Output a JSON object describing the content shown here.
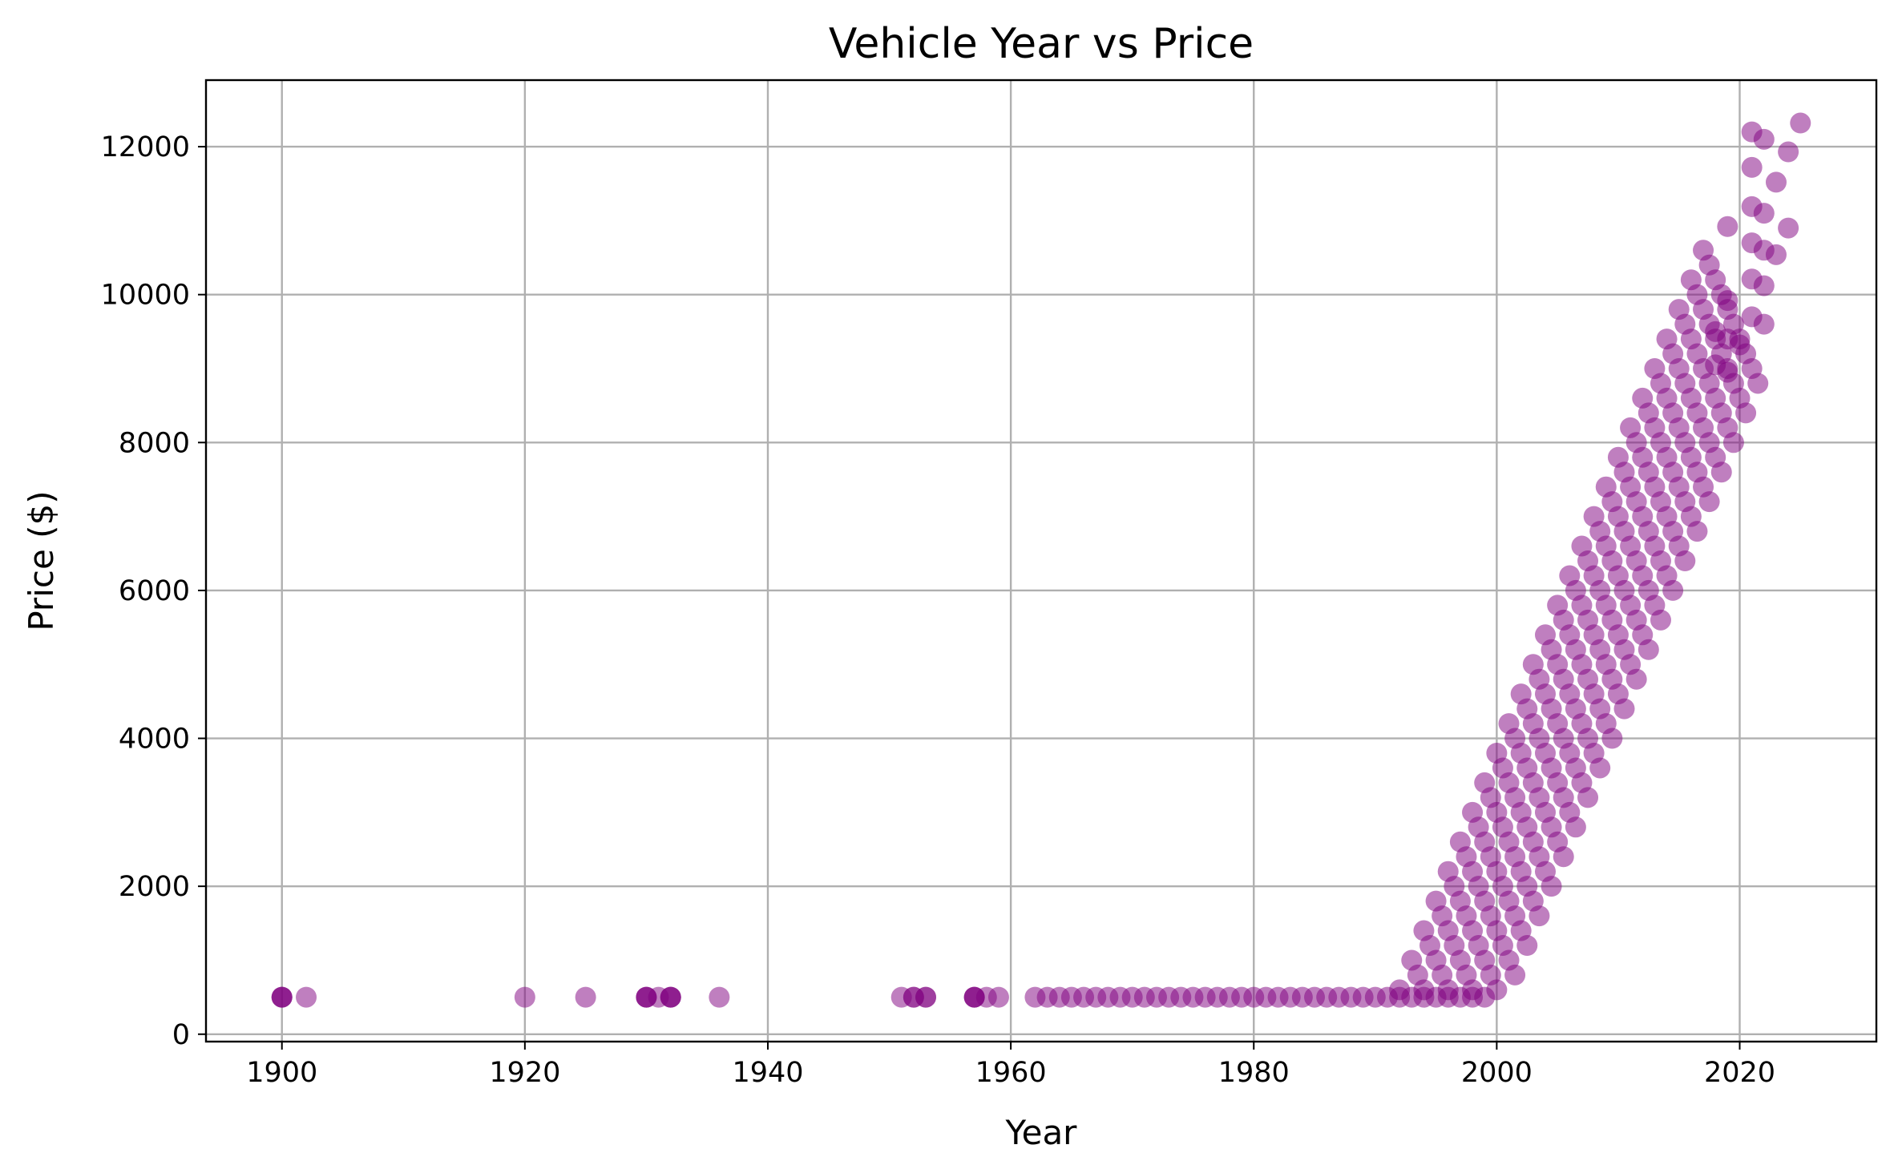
{
  "chart_data": {
    "type": "scatter",
    "title": "Vehicle Year vs Price",
    "xlabel": "Year",
    "ylabel": "Price ($)",
    "xlim": [
      1893.75,
      2031.25
    ],
    "ylim": [
      -100,
      12900
    ],
    "xticks": [
      1900,
      1920,
      1940,
      1960,
      1980,
      2000,
      2020
    ],
    "yticks": [
      0,
      2000,
      4000,
      6000,
      8000,
      10000,
      12000
    ],
    "grid": true,
    "color": "#800080",
    "alpha": 0.5,
    "flat_price": 500,
    "flat_years": [
      1900,
      1900,
      1900,
      1902,
      1920,
      1925,
      1930,
      1930,
      1930,
      1931,
      1932,
      1932,
      1932,
      1936,
      1951,
      1952,
      1952,
      1953,
      1953,
      1957,
      1957,
      1957,
      1958,
      1959
    ],
    "flat_range_years": [
      1962,
      1999
    ],
    "ramp_years": [
      1992,
      2017
    ],
    "ramp_price_per_year": 400,
    "ramp_base_year": 1991,
    "ramp_base_price": 200,
    "ramp_depth_years": 9,
    "extra_points": [
      {
        "x": 2018,
        "y": 9500
      },
      {
        "x": 2018,
        "y": 9050
      },
      {
        "x": 2019,
        "y": 10920
      },
      {
        "x": 2019,
        "y": 9920
      },
      {
        "x": 2019,
        "y": 9400
      },
      {
        "x": 2019,
        "y": 8950
      },
      {
        "x": 2020,
        "y": 9320
      },
      {
        "x": 2021,
        "y": 12200
      },
      {
        "x": 2021,
        "y": 11720
      },
      {
        "x": 2021,
        "y": 11190
      },
      {
        "x": 2021,
        "y": 10700
      },
      {
        "x": 2021,
        "y": 10210
      },
      {
        "x": 2021,
        "y": 9700
      },
      {
        "x": 2022,
        "y": 12100
      },
      {
        "x": 2022,
        "y": 11100
      },
      {
        "x": 2022,
        "y": 10600
      },
      {
        "x": 2022,
        "y": 10120
      },
      {
        "x": 2022,
        "y": 9600
      },
      {
        "x": 2023,
        "y": 11520
      },
      {
        "x": 2023,
        "y": 10540
      },
      {
        "x": 2024,
        "y": 11930
      },
      {
        "x": 2024,
        "y": 10900
      },
      {
        "x": 2025,
        "y": 12320
      }
    ]
  }
}
